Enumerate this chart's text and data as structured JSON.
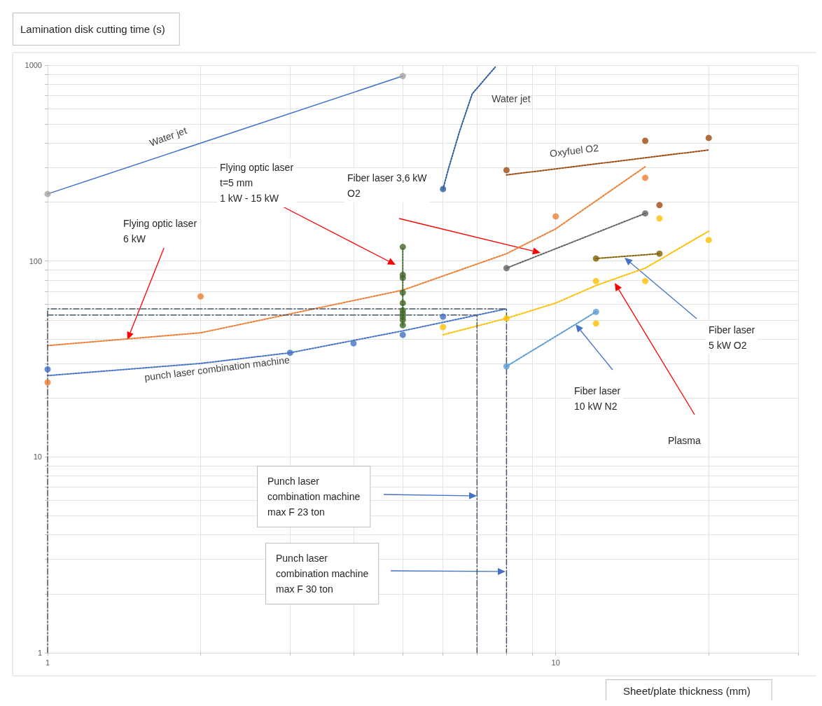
{
  "chart_data": {
    "type": "scatter",
    "ylabel": "Lamination disk cutting time (s)",
    "xlabel": "Sheet/plate thickness (mm)",
    "log": "xy",
    "grid": true,
    "xlim": [
      1,
      30
    ],
    "ylim": [
      1,
      1000
    ],
    "xticks": [
      1,
      {
        "value": 2,
        "label": null
      },
      {
        "value": 3,
        "label": null
      },
      {
        "value": 4,
        "label": null
      },
      {
        "value": 5,
        "label": null
      },
      {
        "value": 6,
        "label": null
      },
      {
        "value": 7,
        "label": null
      },
      {
        "value": 8,
        "label": null
      },
      {
        "value": 9,
        "label": null
      },
      10,
      {
        "value": 20,
        "label": null
      },
      {
        "value": 30,
        "label": null
      }
    ],
    "yticks": [
      1,
      {
        "value": 2,
        "label": null
      },
      {
        "value": 3,
        "label": null
      },
      {
        "value": 4,
        "label": null
      },
      {
        "value": 5,
        "label": null
      },
      {
        "value": 6,
        "label": null
      },
      {
        "value": 7,
        "label": null
      },
      {
        "value": 8,
        "label": null
      },
      {
        "value": 9,
        "label": null
      },
      10,
      {
        "value": 20,
        "label": null
      },
      {
        "value": 30,
        "label": null
      },
      {
        "value": 40,
        "label": null
      },
      {
        "value": 50,
        "label": null
      },
      {
        "value": 60,
        "label": null
      },
      {
        "value": 70,
        "label": null
      },
      {
        "value": 80,
        "label": null
      },
      {
        "value": 90,
        "label": null
      },
      100,
      {
        "value": 200,
        "label": null
      },
      {
        "value": 300,
        "label": null
      },
      {
        "value": 400,
        "label": null
      },
      {
        "value": 500,
        "label": null
      },
      {
        "value": 600,
        "label": null
      },
      {
        "value": 700,
        "label": null
      },
      {
        "value": 800,
        "label": null
      },
      {
        "value": 900,
        "label": null
      },
      1000
    ],
    "series": [
      {
        "type": "line",
        "color": "#4472c4",
        "x": [
          1,
          5
        ],
        "values": [
          220,
          880
        ],
        "line_style": "solid",
        "marker": "none"
      },
      {
        "type": "line",
        "color": "#2e5c9e",
        "x": [
          6,
          6.15,
          6.47,
          6.85,
          7.6
        ],
        "values": [
          233,
          296,
          461,
          714,
          977
        ],
        "line_style": "dotted",
        "marker": "none"
      },
      {
        "type": "line",
        "color": "#4472c4",
        "x": [
          1,
          2,
          3,
          5,
          8
        ],
        "values": [
          26,
          30,
          34,
          44,
          57
        ],
        "line_style": "dotted",
        "marker": "none"
      },
      {
        "type": "line",
        "color": "#ed7d31",
        "x": [
          1,
          2,
          5,
          8,
          10,
          15
        ],
        "values": [
          37,
          43,
          71,
          109,
          146,
          303
        ],
        "line_style": "dotted",
        "marker": "none"
      },
      {
        "type": "line",
        "color": "#43682b",
        "x": [
          5,
          5
        ],
        "values": [
          47,
          118
        ],
        "line_style": "dotted",
        "marker": "none"
      },
      {
        "type": "line",
        "color": "#ffc000",
        "x": [
          6,
          8,
          10,
          12,
          15,
          20
        ],
        "values": [
          42,
          51,
          61,
          75,
          92,
          142
        ],
        "line_style": "dotted",
        "marker": "none"
      },
      {
        "type": "line",
        "color": "#636363",
        "x": [
          8,
          15
        ],
        "values": [
          92,
          175
        ],
        "line_style": "dotted",
        "marker": "none"
      },
      {
        "type": "line",
        "color": "#5b9bd5",
        "x": [
          8,
          12
        ],
        "values": [
          29,
          55
        ],
        "line_style": "dotted",
        "marker": "none"
      },
      {
        "type": "line",
        "color": "#806000",
        "x": [
          12,
          16
        ],
        "values": [
          103,
          109
        ],
        "line_style": "dotted",
        "marker": "none"
      },
      {
        "type": "line",
        "color": "#9e480e",
        "x": [
          8,
          20
        ],
        "values": [
          275,
          369
        ],
        "line_style": "dotted",
        "marker": "none"
      },
      {
        "type": "line",
        "color": "#44546a",
        "x": [
          1,
          1,
          8,
          8
        ],
        "values": [
          1,
          57,
          57,
          1
        ],
        "line_style": "dashed",
        "marker": "none"
      },
      {
        "type": "line",
        "color": "#44546a",
        "x": [
          1,
          7,
          7
        ],
        "values": [
          53,
          53,
          1
        ],
        "line_style": "dashed",
        "marker": "none"
      },
      {
        "color": "#a5a5a5",
        "x": [
          1,
          5
        ],
        "values": [
          220,
          880
        ],
        "marker": "circle"
      },
      {
        "color": "#2e5c9e",
        "x": [
          6
        ],
        "values": [
          233
        ],
        "marker": "circle"
      },
      {
        "color": "#4472c4",
        "x": [
          1,
          3,
          4,
          5,
          6
        ],
        "values": [
          28,
          34,
          38,
          42,
          52
        ],
        "marker": "circle"
      },
      {
        "color": "#ed7d31",
        "x": [
          1,
          2,
          10,
          15
        ],
        "values": [
          24,
          66,
          169,
          266
        ],
        "marker": "circle"
      },
      {
        "color": "#43682b",
        "x": [
          5,
          5,
          5,
          5,
          5,
          5,
          5,
          5,
          5,
          5
        ],
        "values": [
          118,
          85,
          82,
          69,
          61,
          56,
          54,
          52,
          50,
          47
        ],
        "marker": "circle"
      },
      {
        "color": "#ffc000",
        "x": [
          6,
          8,
          12,
          12,
          15,
          16,
          20
        ],
        "values": [
          46,
          51,
          79,
          48,
          79,
          165,
          128
        ],
        "marker": "circle"
      },
      {
        "color": "#636363",
        "x": [
          8,
          15
        ],
        "values": [
          92,
          175
        ],
        "marker": "circle"
      },
      {
        "color": "#5b9bd5",
        "x": [
          8,
          12
        ],
        "values": [
          29,
          55
        ],
        "marker": "circle"
      },
      {
        "color": "#806000",
        "x": [
          12,
          16
        ],
        "values": [
          103,
          109
        ],
        "marker": "circle"
      },
      {
        "color": "#9e480e",
        "x": [
          8,
          15,
          16,
          20
        ],
        "values": [
          291,
          411,
          193,
          425
        ],
        "marker": "circle"
      }
    ],
    "annotations": [
      "Water jet",
      "Water jet",
      "Oxyfuel O2",
      "punch laser combination machine",
      "Flying optic laser\nt=5 mm\n1 kW - 15 kW",
      "Fiber laser 3,6 kW\nO2",
      "Flying optic laser\n6 kW",
      "Fiber laser\n5 kW O2",
      "Fiber laser\n10 kW N2",
      "Plasma",
      "Punch laser\ncombination machine\nmax F 23 ton",
      "Punch laser\ncombination machine\nmax F 30 ton"
    ]
  }
}
